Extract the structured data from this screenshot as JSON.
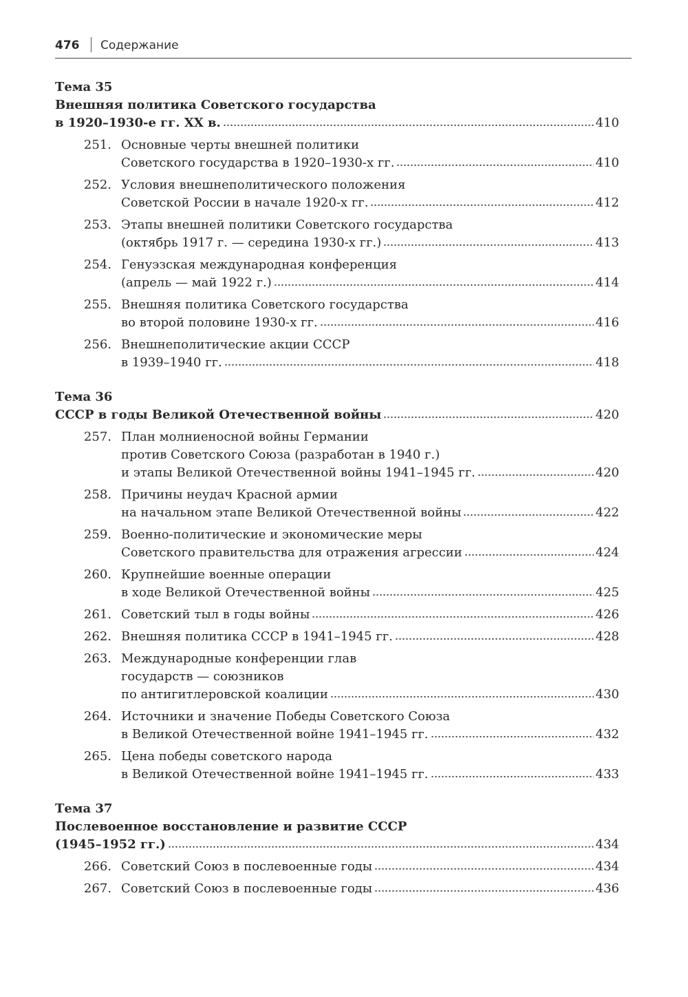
{
  "header": {
    "page_number": "476",
    "title": "Содержание"
  },
  "topics": [
    {
      "label": "Тема 35",
      "title_lines": [
        "Внешняя политика Советского государства",
        "в 1920–1930-е гг. XX в."
      ],
      "page": "410",
      "entries": [
        {
          "num": "251.",
          "lines": [
            "Основные черты внешней политики",
            "Советского государства в 1920–1930-х гг."
          ],
          "page": "410"
        },
        {
          "num": "252.",
          "lines": [
            "Условия внешнеполитического положения",
            "Советской России в начале 1920-х гг."
          ],
          "page": "412"
        },
        {
          "num": "253.",
          "lines": [
            "Этапы внешней политики Советского государства",
            "(октябрь 1917 г. — середина 1930-х гг.)"
          ],
          "page": "413"
        },
        {
          "num": "254.",
          "lines": [
            "Генуэзская международная конференция",
            "(апрель — май 1922 г.)"
          ],
          "page": "414"
        },
        {
          "num": "255.",
          "lines": [
            "Внешняя политика Советского государства",
            "во второй половине 1930-х гг."
          ],
          "page": "416"
        },
        {
          "num": "256.",
          "lines": [
            "Внешнеполитические акции СССР",
            "в 1939–1940 гг."
          ],
          "page": "418"
        }
      ]
    },
    {
      "label": "Тема 36",
      "title_lines": [
        "СССР в годы Великой Отечественной войны"
      ],
      "page": "420",
      "entries": [
        {
          "num": "257.",
          "lines": [
            "План молниеносной войны Германии",
            "против Советского Союза (разработан в 1940 г.)",
            "и этапы Великой Отечественной войны 1941–1945 гг."
          ],
          "page": "420"
        },
        {
          "num": "258.",
          "lines": [
            "Причины неудач Красной армии",
            "на начальном этапе Великой Отечественной войны"
          ],
          "page": "422"
        },
        {
          "num": "259.",
          "lines": [
            "Военно-политические и экономические меры",
            "Советского правительства для отражения агрессии"
          ],
          "page": "424"
        },
        {
          "num": "260.",
          "lines": [
            "Крупнейшие военные операции",
            "в ходе Великой Отечественной войны"
          ],
          "page": "425"
        },
        {
          "num": "261.",
          "lines": [
            "Советский тыл в годы войны"
          ],
          "page": "426"
        },
        {
          "num": "262.",
          "lines": [
            "Внешняя политика СССР в 1941–1945 гг."
          ],
          "page": "428"
        },
        {
          "num": "263.",
          "lines": [
            "Международные конференции глав",
            "государств — союзников",
            "по антигитлеровской коалиции"
          ],
          "page": "430"
        },
        {
          "num": "264.",
          "lines": [
            "Источники и значение Победы Советского Союза",
            "в Великой Отечественной войне 1941–1945 гг."
          ],
          "page": "432"
        },
        {
          "num": "265.",
          "lines": [
            "Цена победы советского народа",
            "в Великой Отечественной войне 1941–1945 гг."
          ],
          "page": "433"
        }
      ]
    },
    {
      "label": "Тема 37",
      "title_lines": [
        "Послевоенное восстановление и развитие СССР",
        "(1945–1952 гг.)"
      ],
      "page": "434",
      "entries": [
        {
          "num": "266.",
          "lines": [
            "Советский Союз в послевоенные годы"
          ],
          "page": "434"
        },
        {
          "num": "267.",
          "lines": [
            "Советский Союз в послевоенные годы"
          ],
          "page": "436"
        }
      ]
    }
  ]
}
